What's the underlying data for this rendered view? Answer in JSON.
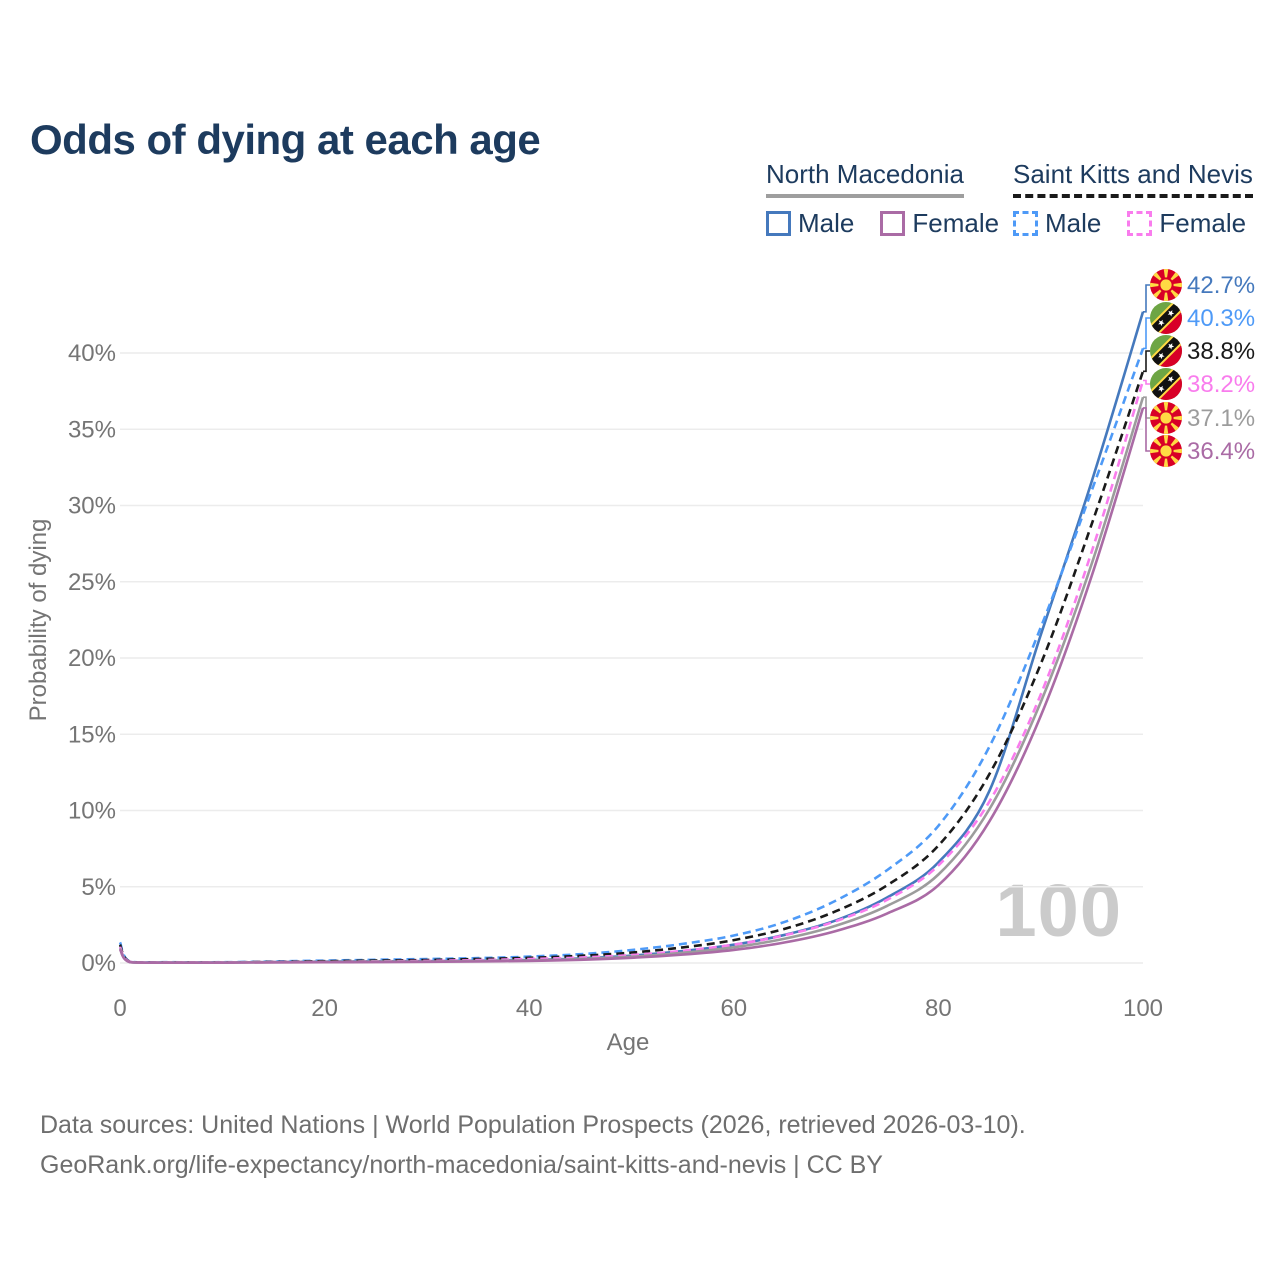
{
  "title": "Odds of dying at each age",
  "watermark": "100",
  "legend": {
    "groups": [
      {
        "title": "North Macedonia",
        "line_style": "solid",
        "underline_color": "#9e9e9e",
        "items": [
          {
            "label": "Male",
            "color": "#4579bd",
            "dash": false
          },
          {
            "label": "Female",
            "color": "#aa6ba5",
            "dash": false
          }
        ]
      },
      {
        "title": "Saint Kitts and Nevis",
        "line_style": "dashed",
        "underline_color": "#1a1a1a",
        "items": [
          {
            "label": "Male",
            "color": "#4e9af7",
            "dash": true
          },
          {
            "label": "Female",
            "color": "#f97ced",
            "dash": true
          }
        ]
      }
    ]
  },
  "footer": {
    "line1": "Data sources: United Nations | World Population Prospects (2026, retrieved 2026-03-10).",
    "line2": "GeoRank.org/life-expectancy/north-macedonia/saint-kitts-and-nevis | CC BY"
  },
  "chart_data": {
    "type": "line",
    "title": "Odds of dying at each age",
    "xlabel": "Age",
    "ylabel": "Probability of dying",
    "xlim": [
      0,
      100
    ],
    "ylim": [
      0,
      40
    ],
    "xticks": [
      0,
      20,
      40,
      60,
      80,
      100
    ],
    "yticks": [
      0,
      5,
      10,
      15,
      20,
      25,
      30,
      35,
      40
    ],
    "ytick_suffix": "%",
    "grid": "horizontal",
    "legend_position": "top-right",
    "x": [
      0,
      1,
      5,
      10,
      15,
      20,
      25,
      30,
      35,
      40,
      45,
      50,
      55,
      60,
      65,
      70,
      75,
      80,
      85,
      90,
      95,
      100
    ],
    "series": [
      {
        "name": "North Macedonia Male",
        "flag": "nm",
        "color": "#4579bd",
        "dash": false,
        "end_label": "42.7%",
        "values": [
          1.0,
          0.06,
          0.03,
          0.03,
          0.06,
          0.09,
          0.11,
          0.12,
          0.15,
          0.2,
          0.3,
          0.48,
          0.78,
          1.2,
          1.85,
          2.8,
          4.3,
          6.6,
          11.3,
          21.5,
          31.6,
          42.7
        ]
      },
      {
        "name": "Saint Kitts and Nevis Male",
        "flag": "skn",
        "color": "#4e9af7",
        "dash": true,
        "end_label": "40.3%",
        "values": [
          1.35,
          0.09,
          0.05,
          0.05,
          0.1,
          0.16,
          0.21,
          0.26,
          0.32,
          0.42,
          0.58,
          0.85,
          1.25,
          1.8,
          2.7,
          4.1,
          6.1,
          9.0,
          14.2,
          22.0,
          31.0,
          40.3
        ]
      },
      {
        "name": "Saint Kitts and Nevis Both sexes",
        "flag": "skn",
        "color": "#1a1a1a",
        "dash": true,
        "end_label": "38.8%",
        "values": [
          1.2,
          0.08,
          0.04,
          0.04,
          0.08,
          0.12,
          0.16,
          0.2,
          0.26,
          0.34,
          0.47,
          0.68,
          1.02,
          1.5,
          2.25,
          3.4,
          5.1,
          7.7,
          12.4,
          19.6,
          28.8,
          38.8
        ]
      },
      {
        "name": "Saint Kitts and Nevis Female",
        "flag": "skn",
        "color": "#f97ced",
        "dash": true,
        "end_label": "38.2%",
        "values": [
          1.05,
          0.07,
          0.04,
          0.04,
          0.06,
          0.08,
          0.11,
          0.14,
          0.19,
          0.26,
          0.36,
          0.52,
          0.8,
          1.2,
          1.82,
          2.75,
          4.15,
          6.4,
          10.6,
          17.6,
          27.0,
          38.2
        ]
      },
      {
        "name": "North Macedonia Both sexes",
        "flag": "nm",
        "color": "#9c9c9c",
        "dash": false,
        "end_label": "37.1%",
        "values": [
          0.95,
          0.05,
          0.03,
          0.03,
          0.05,
          0.07,
          0.09,
          0.1,
          0.13,
          0.17,
          0.26,
          0.41,
          0.67,
          1.03,
          1.6,
          2.45,
          3.75,
          5.8,
          10.1,
          17.1,
          26.2,
          37.1
        ]
      },
      {
        "name": "North Macedonia Female",
        "flag": "nm",
        "color": "#aa6ba5",
        "dash": false,
        "end_label": "36.4%",
        "values": [
          0.9,
          0.05,
          0.02,
          0.02,
          0.04,
          0.05,
          0.06,
          0.08,
          0.1,
          0.14,
          0.21,
          0.34,
          0.55,
          0.86,
          1.35,
          2.1,
          3.25,
          5.1,
          9.3,
          16.2,
          25.4,
          36.4
        ]
      }
    ]
  }
}
